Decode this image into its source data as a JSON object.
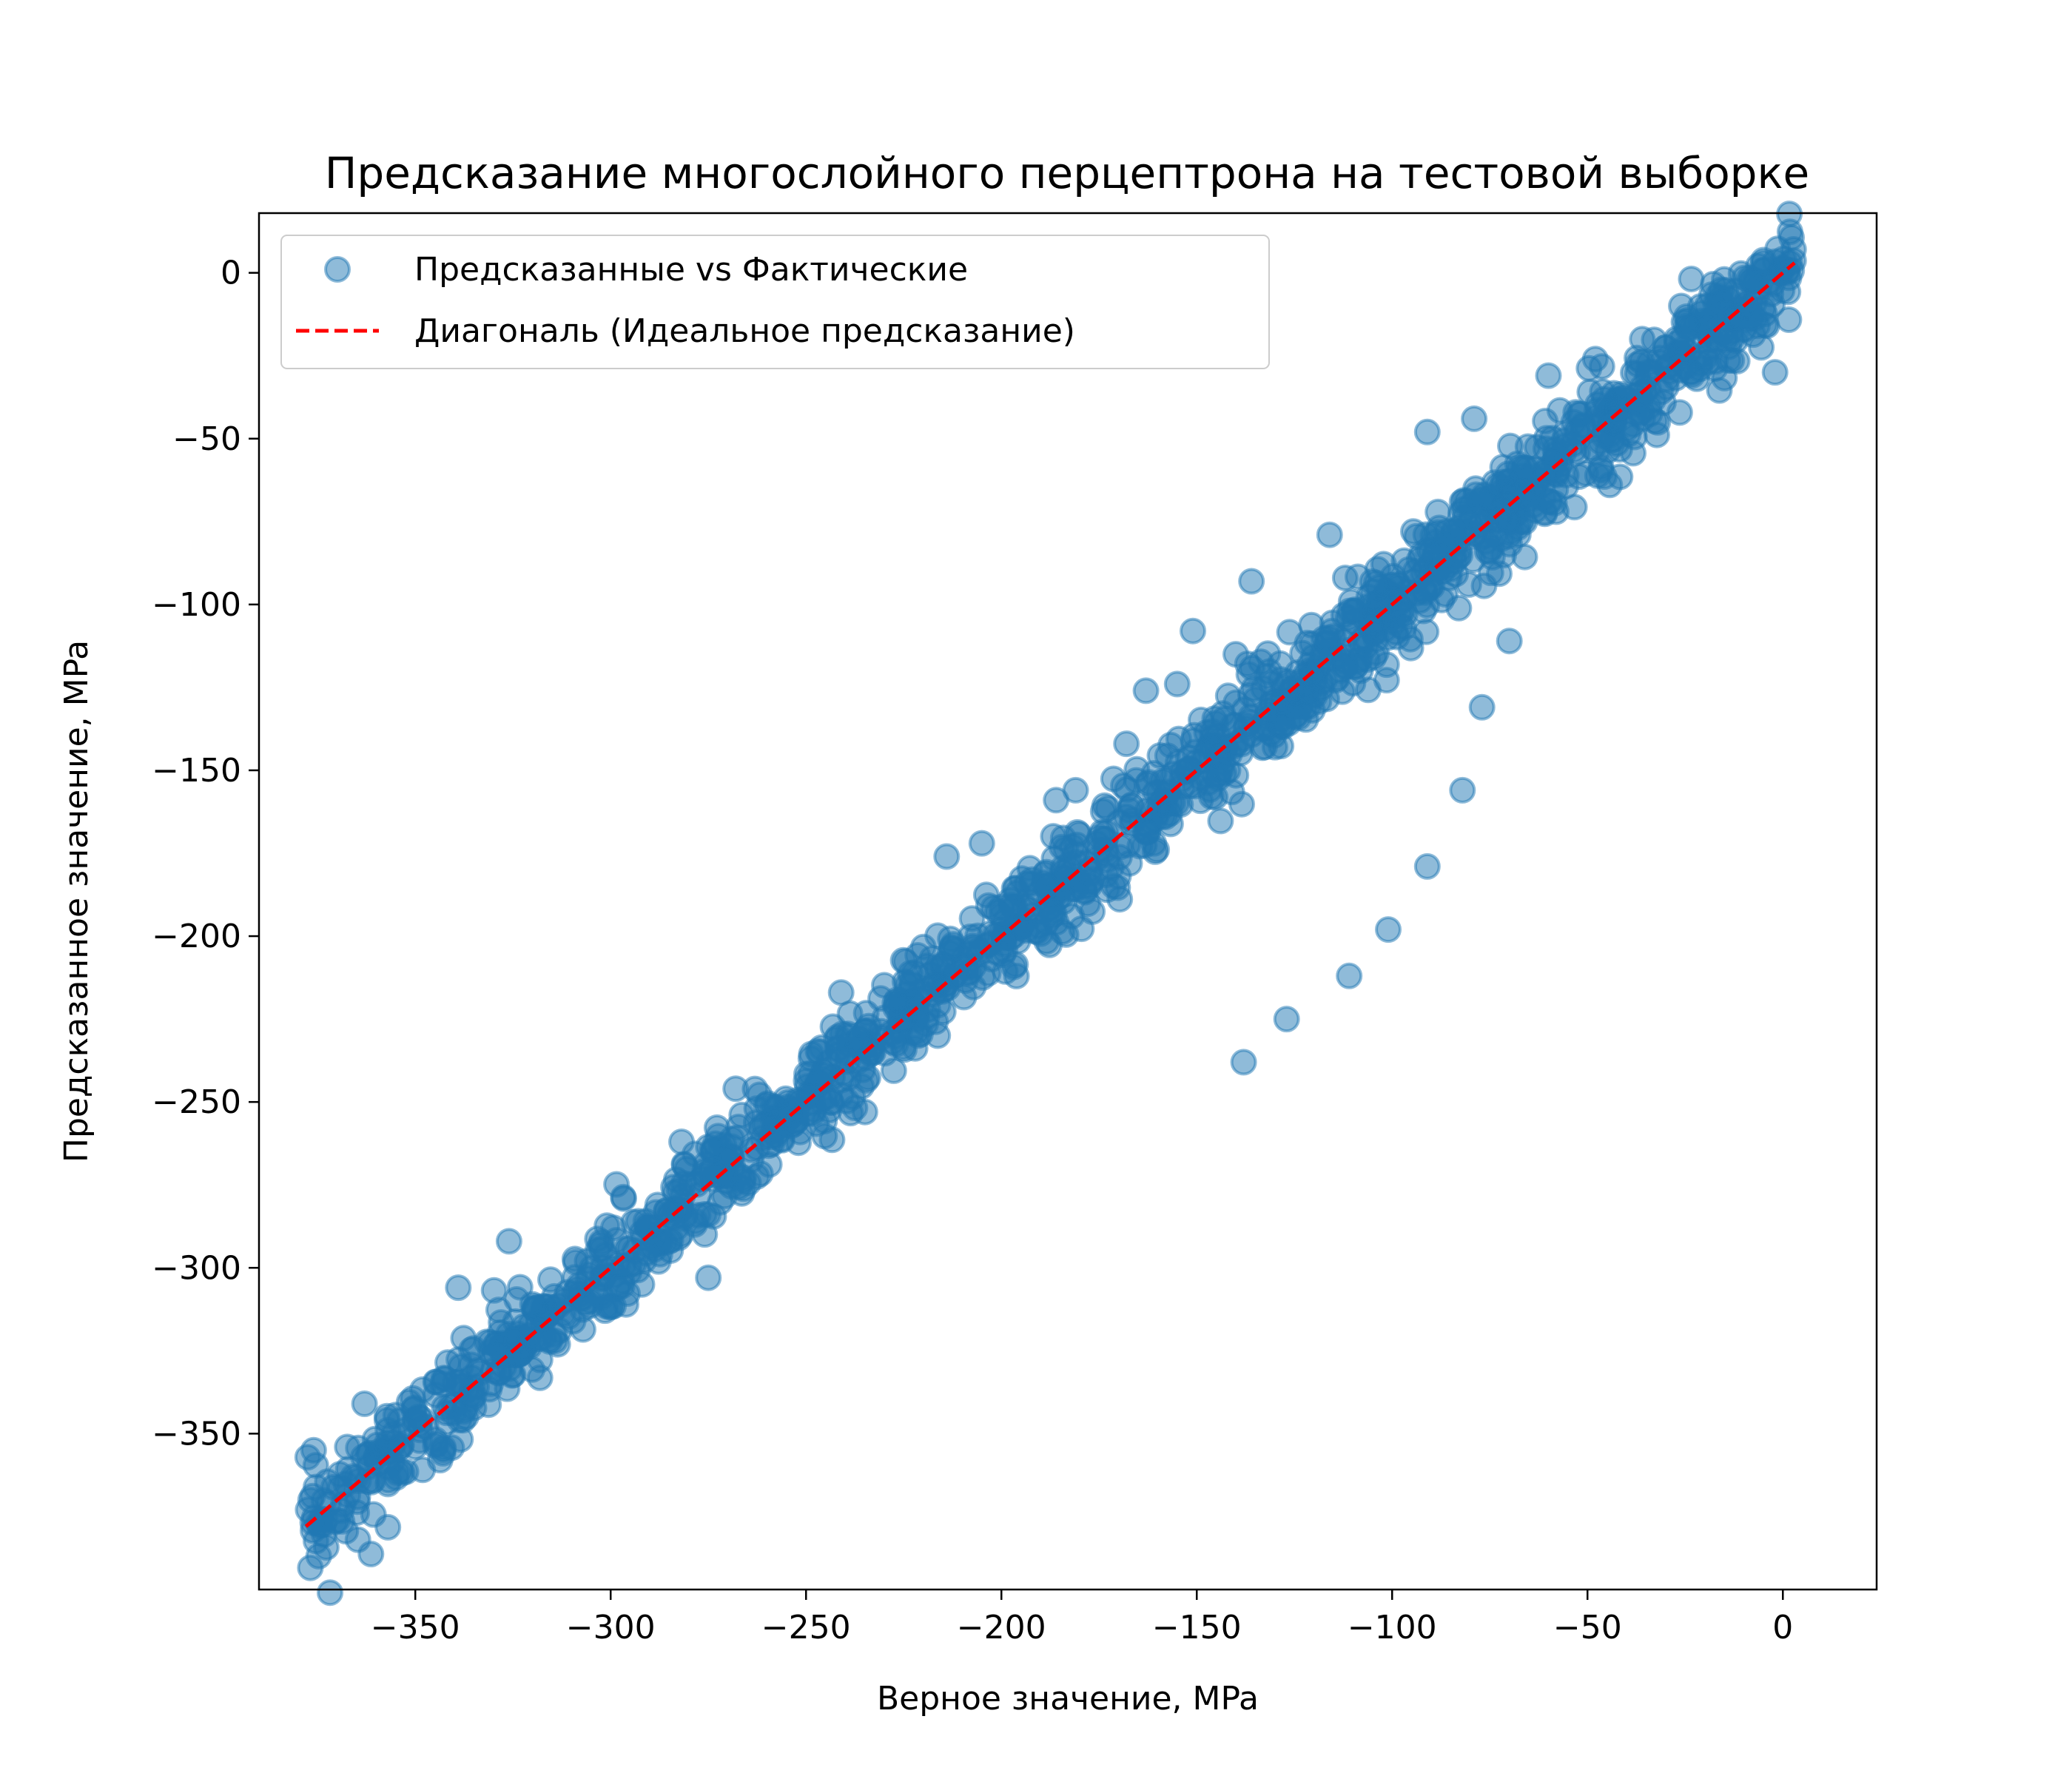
{
  "chart_data": {
    "type": "scatter",
    "title": "Предсказание многослойного перцептрона на тестовой выборке",
    "xlabel": "Верное значение, MPa",
    "ylabel": "Предсказанное значение, MPa",
    "xlim": [
      -390,
      24
    ],
    "ylim": [
      -397,
      18
    ],
    "x_ticks": [
      -350,
      -300,
      -250,
      -200,
      -150,
      -100,
      -50,
      0
    ],
    "y_ticks": [
      0,
      -50,
      -100,
      -150,
      -200,
      -250,
      -300,
      -350
    ],
    "x_tick_labels": [
      "−350",
      "−300",
      "−250",
      "−200",
      "−150",
      "−100",
      "−50",
      "0"
    ],
    "y_tick_labels": [
      "0",
      "−50",
      "−100",
      "−150",
      "−200",
      "−250",
      "−300",
      "−350"
    ],
    "grid": false,
    "legend_position": "upper-left",
    "series": [
      {
        "name": "Предсказанные vs Фактические",
        "kind": "scatter",
        "color": "#1f77b4",
        "opacity": 0.5,
        "trend": {
          "x_range": [
            -378,
            3
          ],
          "slope": 1.0,
          "intercept": 0,
          "spread_sd": 7.5,
          "n_points": 1500
        },
        "outliers": [
          [
            -138,
            -238
          ],
          [
            -127,
            -225
          ],
          [
            -111,
            -212
          ],
          [
            -101,
            -198
          ],
          [
            -91,
            -179
          ],
          [
            -82,
            -156
          ],
          [
            -77,
            -131
          ],
          [
            -70,
            -111
          ],
          [
            -97,
            -107
          ],
          [
            -108,
            -111
          ],
          [
            -130,
            -143
          ],
          [
            -142,
            -150
          ],
          [
            -161,
            -172
          ],
          [
            -173,
            -186
          ],
          [
            -182,
            -194
          ],
          [
            -201,
            -205
          ],
          [
            -226,
            -225
          ],
          [
            -249,
            -248
          ],
          [
            -275,
            -303
          ],
          [
            -292,
            -305
          ],
          [
            -306,
            -298
          ],
          [
            -326,
            -292
          ],
          [
            -339,
            -306
          ],
          [
            -343,
            -335
          ],
          [
            -357,
            -349
          ],
          [
            -376,
            -355
          ],
          [
            -363,
            -341
          ],
          [
            -320,
            -311
          ],
          [
            -285,
            -292
          ],
          [
            -268,
            -246
          ],
          [
            -241,
            -217
          ],
          [
            -214,
            -176
          ],
          [
            -205,
            -172
          ],
          [
            -181,
            -156
          ],
          [
            -163,
            -126
          ],
          [
            -151,
            -108
          ],
          [
            -136,
            -93
          ],
          [
            -116,
            -79
          ],
          [
            -91,
            -48
          ],
          [
            -79,
            -44
          ],
          [
            -60,
            -31
          ],
          [
            -36,
            -20
          ],
          [
            -26,
            -10
          ],
          [
            -15,
            -2
          ],
          [
            -5,
            3
          ],
          [
            -2,
            -30
          ],
          [
            -48,
            -26
          ],
          [
            -58,
            -72
          ],
          [
            -71,
            -70
          ],
          [
            -86,
            -78
          ],
          [
            -94,
            -90
          ],
          [
            -112,
            -92
          ],
          [
            -140,
            -115
          ],
          [
            -155,
            -124
          ],
          [
            -168,
            -142
          ],
          [
            -186,
            -159
          ],
          [
            -196,
            -187
          ],
          [
            -223,
            -220
          ],
          [
            -258,
            -258
          ],
          [
            -291,
            -286
          ],
          [
            -330,
            -331
          ]
        ]
      },
      {
        "name": "Диагональ (Идеальное предсказание)",
        "kind": "line",
        "color": "#ff0000",
        "dash": "dashed",
        "x": [
          -378,
          3
        ],
        "y": [
          -378,
          3
        ]
      }
    ]
  }
}
